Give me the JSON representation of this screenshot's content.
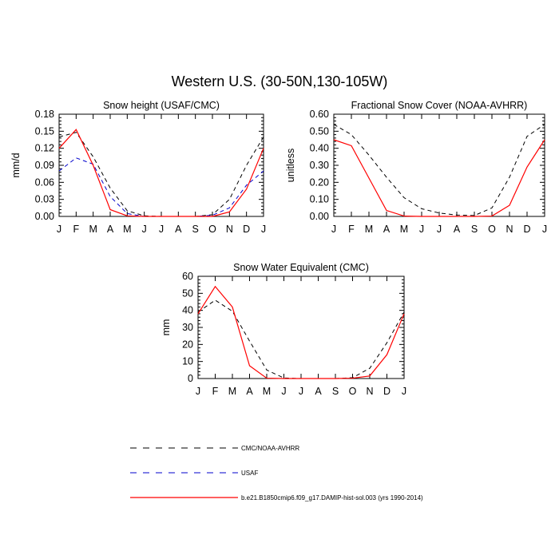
{
  "title": "Western U.S. (30-50N,130-105W)",
  "colors": {
    "model": "#ff0000",
    "obs": "#000000",
    "usaf": "#0000cc",
    "axis": "#000000"
  },
  "chart_data": [
    {
      "type": "line",
      "title": "Snow height (USAF/CMC)",
      "xlabel": "",
      "ylabel": "mm/d",
      "categories": [
        "J",
        "F",
        "M",
        "A",
        "M",
        "J",
        "J",
        "A",
        "S",
        "O",
        "N",
        "D",
        "J"
      ],
      "ylim": [
        0,
        0.18
      ],
      "yticks": [
        "0.00",
        "0.03",
        "0.06",
        "0.09",
        "0.12",
        "0.15",
        "0.18"
      ],
      "series": [
        {
          "name": "CMC/NOAA-AVHRR",
          "color": "#000000",
          "dash": "dashed",
          "values": [
            0.14,
            0.148,
            0.105,
            0.05,
            0.01,
            0.001,
            0.0,
            0.0,
            0.0,
            0.003,
            0.03,
            0.09,
            0.14
          ]
        },
        {
          "name": "USAF",
          "color": "#0000cc",
          "dash": "dashed",
          "values": [
            0.08,
            0.103,
            0.092,
            0.035,
            0.005,
            0.0,
            0.0,
            0.0,
            0.0,
            0.002,
            0.015,
            0.055,
            0.08
          ]
        },
        {
          "name": "b.e21.B1850cmip6.f09_g17.DAMIP-hist-sol.003 (yrs 1990-2014)",
          "color": "#ff0000",
          "dash": "solid",
          "values": [
            0.12,
            0.153,
            0.09,
            0.012,
            0.001,
            0.0,
            0.0,
            0.0,
            0.0,
            0.0,
            0.008,
            0.048,
            0.12
          ]
        }
      ]
    },
    {
      "type": "line",
      "title": "Fractional Snow Cover (NOAA-AVHRR)",
      "xlabel": "",
      "ylabel": "unitless",
      "categories": [
        "J",
        "F",
        "M",
        "A",
        "M",
        "J",
        "J",
        "A",
        "S",
        "O",
        "N",
        "D",
        "J"
      ],
      "ylim": [
        0,
        0.6
      ],
      "yticks": [
        "0.00",
        "0.10",
        "0.20",
        "0.30",
        "0.40",
        "0.50",
        "0.60"
      ],
      "series": [
        {
          "name": "CMC/NOAA-AVHRR",
          "color": "#000000",
          "dash": "dashed",
          "values": [
            0.54,
            0.48,
            0.36,
            0.23,
            0.11,
            0.045,
            0.02,
            0.008,
            0.005,
            0.05,
            0.23,
            0.47,
            0.54
          ]
        },
        {
          "name": "b.e21.B1850cmip6.f09_g17.DAMIP-hist-sol.003 (yrs 1990-2014)",
          "color": "#ff0000",
          "dash": "solid",
          "values": [
            0.45,
            0.415,
            0.225,
            0.035,
            0.002,
            0.0,
            0.0,
            0.0,
            0.0,
            0.002,
            0.065,
            0.29,
            0.45
          ]
        }
      ]
    },
    {
      "type": "line",
      "title": "Snow Water Equivalent (CMC)",
      "xlabel": "",
      "ylabel": "mm",
      "categories": [
        "J",
        "F",
        "M",
        "A",
        "M",
        "J",
        "J",
        "A",
        "S",
        "O",
        "N",
        "D",
        "J"
      ],
      "ylim": [
        0,
        60
      ],
      "yticks": [
        "0",
        "10",
        "20",
        "30",
        "40",
        "50",
        "60"
      ],
      "series": [
        {
          "name": "CMC/NOAA-AVHRR",
          "color": "#000000",
          "dash": "dashed",
          "values": [
            39.0,
            46.0,
            39.5,
            22.0,
            5.0,
            0.3,
            0.0,
            0.0,
            0.0,
            0.5,
            6.0,
            21.0,
            39.0
          ]
        },
        {
          "name": "b.e21.B1850cmip6.f09_g17.DAMIP-hist-sol.003 (yrs 1990-2014)",
          "color": "#ff0000",
          "dash": "solid",
          "values": [
            38.0,
            54.0,
            42.0,
            7.5,
            0.2,
            0.0,
            0.0,
            0.0,
            0.0,
            0.2,
            1.5,
            14.0,
            38.0
          ]
        }
      ]
    }
  ],
  "legend": {
    "placement": "bottom",
    "entries": [
      {
        "label": "CMC/NOAA-AVHRR",
        "color": "#000000",
        "dash": "dashed"
      },
      {
        "label": "USAF",
        "color": "#0000cc",
        "dash": "dashed"
      },
      {
        "label": "b.e21.B1850cmip6.f09_g17.DAMIP-hist-sol.003 (yrs 1990-2014)",
        "color": "#ff0000",
        "dash": "solid"
      }
    ]
  }
}
